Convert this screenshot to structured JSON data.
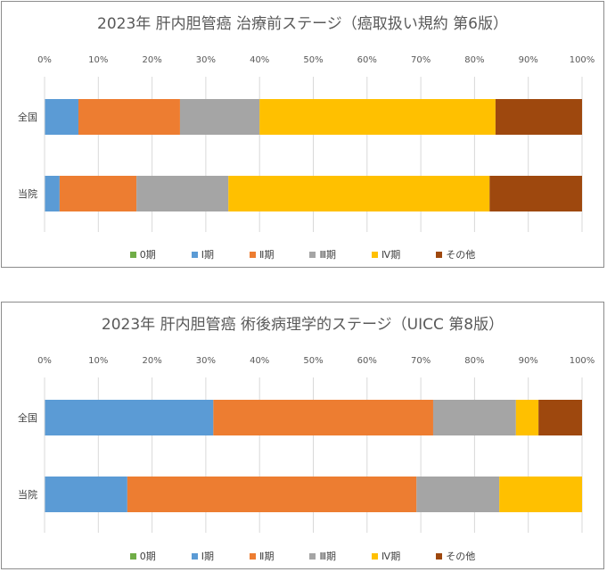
{
  "chart_data": [
    {
      "type": "bar",
      "orientation": "horizontal",
      "stacked": true,
      "title": "2023年  肝内胆管癌  治療前ステージ（癌取扱い規約 第6版）",
      "categories": [
        "全国",
        "当院"
      ],
      "xlim": [
        0,
        100
      ],
      "x_ticks": [
        "0%",
        "10%",
        "20%",
        "30%",
        "40%",
        "50%",
        "60%",
        "70%",
        "80%",
        "90%",
        "100%"
      ],
      "grid": true,
      "legend_position": "bottom",
      "series": [
        {
          "name": "0期",
          "color": "#70ad47",
          "values": [
            0,
            0
          ]
        },
        {
          "name": "Ⅰ期",
          "color": "#5b9bd5",
          "values": [
            6.3,
            2.8
          ]
        },
        {
          "name": "Ⅱ期",
          "color": "#ed7d31",
          "values": [
            18.9,
            14.3
          ]
        },
        {
          "name": "Ⅲ期",
          "color": "#a5a5a5",
          "values": [
            14.8,
            17.1
          ]
        },
        {
          "name": "Ⅳ期",
          "color": "#ffc000",
          "values": [
            43.9,
            48.6
          ]
        },
        {
          "name": "その他",
          "color": "#9e480e",
          "values": [
            16.1,
            17.2
          ]
        }
      ]
    },
    {
      "type": "bar",
      "orientation": "horizontal",
      "stacked": true,
      "title": "2023年  肝内胆管癌  術後病理学的ステージ（UICC 第8版）",
      "categories": [
        "全国",
        "当院"
      ],
      "xlim": [
        0,
        100
      ],
      "x_ticks": [
        "0%",
        "10%",
        "20%",
        "30%",
        "40%",
        "50%",
        "60%",
        "70%",
        "80%",
        "90%",
        "100%"
      ],
      "grid": true,
      "legend_position": "bottom",
      "series": [
        {
          "name": "0期",
          "color": "#70ad47",
          "values": [
            0,
            0
          ]
        },
        {
          "name": "Ⅰ期",
          "color": "#5b9bd5",
          "values": [
            31.4,
            15.4
          ]
        },
        {
          "name": "Ⅱ期",
          "color": "#ed7d31",
          "values": [
            40.9,
            53.8
          ]
        },
        {
          "name": "Ⅲ期",
          "color": "#a5a5a5",
          "values": [
            15.4,
            15.4
          ]
        },
        {
          "name": "Ⅳ期",
          "color": "#ffc000",
          "values": [
            4.2,
            15.4
          ]
        },
        {
          "name": "その他",
          "color": "#9e480e",
          "values": [
            8.1,
            0
          ]
        }
      ]
    }
  ]
}
